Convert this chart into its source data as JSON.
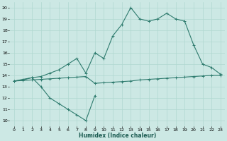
{
  "xlabel": "Humidex (Indice chaleur)",
  "xlim": [
    -0.5,
    23.5
  ],
  "ylim": [
    9.5,
    20.5
  ],
  "yticks": [
    10,
    11,
    12,
    13,
    14,
    15,
    16,
    17,
    18,
    19,
    20
  ],
  "xticks": [
    0,
    1,
    2,
    3,
    4,
    5,
    6,
    7,
    8,
    9,
    10,
    11,
    12,
    13,
    14,
    15,
    16,
    17,
    18,
    19,
    20,
    21,
    22,
    23
  ],
  "bg_color": "#cce8e4",
  "line_color": "#2e7b6e",
  "grid_color": "#b0d8d0",
  "series": [
    {
      "x": [
        0,
        2,
        3,
        4,
        5,
        6,
        7,
        8,
        9
      ],
      "y": [
        13.5,
        13.8,
        13.0,
        12.0,
        11.5,
        11.0,
        10.5,
        10.0,
        12.2
      ]
    },
    {
      "x": [
        0,
        1,
        2,
        3,
        4,
        5,
        6,
        7,
        8,
        9,
        10,
        11,
        12,
        13,
        14,
        15,
        16,
        17,
        18,
        19,
        20,
        21,
        22,
        23
      ],
      "y": [
        13.5,
        13.55,
        13.6,
        13.65,
        13.7,
        13.75,
        13.8,
        13.85,
        13.9,
        13.3,
        13.35,
        13.4,
        13.45,
        13.5,
        13.6,
        13.65,
        13.7,
        13.75,
        13.8,
        13.85,
        13.9,
        13.95,
        14.0,
        14.0
      ]
    },
    {
      "x": [
        0,
        1,
        2,
        3,
        4,
        5,
        6,
        7,
        8,
        9,
        10,
        11,
        12,
        13,
        14,
        15,
        16,
        17,
        18,
        19,
        20,
        21,
        22,
        23
      ],
      "y": [
        13.5,
        13.6,
        13.8,
        13.9,
        14.2,
        14.5,
        15.0,
        15.5,
        14.2,
        16.0,
        15.5,
        17.5,
        18.5,
        20.0,
        19.0,
        18.8,
        19.0,
        19.5,
        19.0,
        18.8,
        16.7,
        15.0,
        14.7,
        14.1
      ]
    }
  ]
}
